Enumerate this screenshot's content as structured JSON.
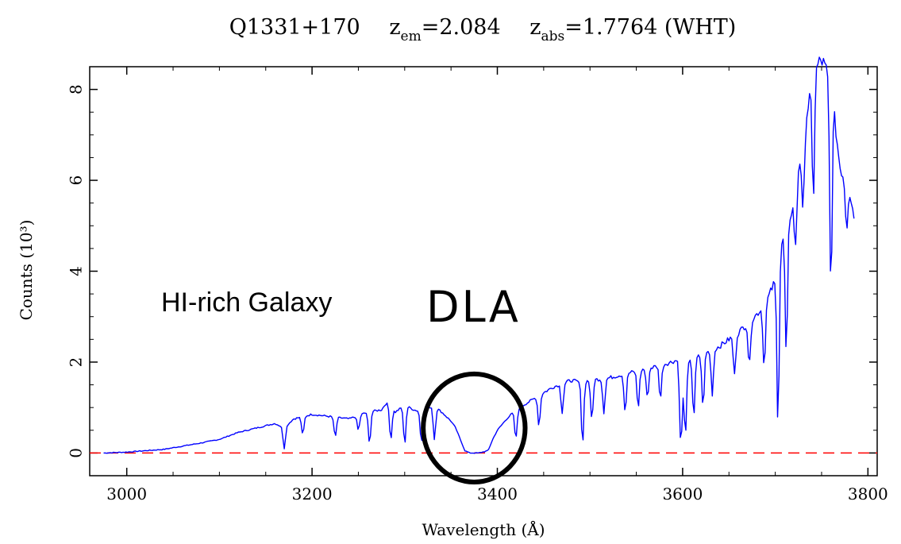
{
  "chart_data": {
    "type": "line",
    "title": {
      "object": "Q1331+170",
      "z_em_prefix": "z",
      "z_em_sub": "em",
      "z_em_value": "=2.084",
      "z_abs_prefix": "z",
      "z_abs_sub": "abs",
      "z_abs_value": "=1.7764 (WHT)"
    },
    "xlabel": "Wavelength (Å)",
    "ylabel": "Counts (10³)",
    "xlim": [
      2960,
      3810
    ],
    "ylim": [
      -0.5,
      8.5
    ],
    "xticks": [
      3000,
      3200,
      3400,
      3600,
      3800
    ],
    "yticks": [
      0,
      2,
      4,
      6,
      8
    ],
    "zero_line": {
      "y": 0,
      "color": "#ff0000",
      "style": "dashed"
    },
    "annotations": {
      "galaxy_label": "HI-rich Galaxy",
      "dla_label": "DLA"
    },
    "highlight_circle": {
      "center_x": 3375,
      "center_y": 0.55,
      "radius_x": 55
    },
    "series": [
      {
        "color": "#0000ff",
        "x": [
          2975,
          3000,
          3020,
          3040,
          3060,
          3080,
          3100,
          3120,
          3140,
          3160,
          3170,
          3180,
          3200,
          3220,
          3240,
          3260,
          3275,
          3280,
          3290,
          3300,
          3310,
          3320,
          3330,
          3340,
          3350,
          3355,
          3360,
          3365,
          3370,
          3380,
          3390,
          3395,
          3400,
          3410,
          3420,
          3440,
          3460,
          3480,
          3490,
          3500,
          3520,
          3540,
          3560,
          3580,
          3595,
          3600,
          3605,
          3610,
          3620,
          3640,
          3660,
          3680,
          3690,
          3700,
          3703,
          3705,
          3710,
          3720,
          3725,
          3730,
          3735,
          3740,
          3745,
          3750,
          3755,
          3760,
          3765,
          3768,
          3770,
          3775,
          3780,
          3785
        ],
        "y": [
          0,
          0.02,
          0.05,
          0.08,
          0.15,
          0.22,
          0.3,
          0.45,
          0.55,
          0.65,
          0.55,
          0.75,
          0.85,
          0.8,
          0.75,
          0.9,
          0.95,
          1.1,
          0.9,
          1.05,
          0.95,
          0.9,
          1.05,
          0.9,
          0.7,
          0.55,
          0.3,
          0.05,
          0,
          0,
          0.05,
          0.3,
          0.5,
          0.75,
          0.95,
          1.2,
          1.45,
          1.6,
          1.55,
          1.6,
          1.65,
          1.75,
          1.85,
          1.95,
          2.05,
          1.6,
          1.95,
          2.05,
          2.15,
          2.35,
          2.65,
          3.05,
          3.3,
          3.8,
          4.2,
          4.5,
          4.8,
          5.5,
          6.3,
          6.9,
          7.6,
          8.1,
          8.5,
          8.65,
          8.4,
          8.0,
          7.2,
          6.6,
          6.3,
          6.0,
          5.8,
          5.2
        ],
        "absorption_lines": [
          {
            "x": 3170,
            "y": 0.1
          },
          {
            "x": 3190,
            "y": 0.4
          },
          {
            "x": 3225,
            "y": 0.35
          },
          {
            "x": 3250,
            "y": 0.5
          },
          {
            "x": 3262,
            "y": 0.2
          },
          {
            "x": 3285,
            "y": 0.3
          },
          {
            "x": 3300,
            "y": 0.2
          },
          {
            "x": 3318,
            "y": 0.25
          },
          {
            "x": 3332,
            "y": 0.3
          },
          {
            "x": 3420,
            "y": 0.3
          },
          {
            "x": 3445,
            "y": 0.6
          },
          {
            "x": 3470,
            "y": 0.9
          },
          {
            "x": 3492,
            "y": 0.2
          },
          {
            "x": 3502,
            "y": 0.7
          },
          {
            "x": 3515,
            "y": 0.9
          },
          {
            "x": 3538,
            "y": 0.9
          },
          {
            "x": 3552,
            "y": 1.0
          },
          {
            "x": 3562,
            "y": 1.2
          },
          {
            "x": 3576,
            "y": 1.2
          },
          {
            "x": 3598,
            "y": 0.15
          },
          {
            "x": 3603,
            "y": 0.4
          },
          {
            "x": 3612,
            "y": 0.8
          },
          {
            "x": 3622,
            "y": 1.0
          },
          {
            "x": 3632,
            "y": 1.3
          },
          {
            "x": 3656,
            "y": 1.7
          },
          {
            "x": 3672,
            "y": 1.9
          },
          {
            "x": 3688,
            "y": 1.9
          },
          {
            "x": 3703,
            "y": 0.7
          },
          {
            "x": 3712,
            "y": 2.1
          },
          {
            "x": 3722,
            "y": 4.5
          },
          {
            "x": 3730,
            "y": 5.2
          },
          {
            "x": 3741,
            "y": 5.6
          },
          {
            "x": 3760,
            "y": 3.6
          },
          {
            "x": 3777,
            "y": 5.0
          }
        ]
      }
    ]
  }
}
